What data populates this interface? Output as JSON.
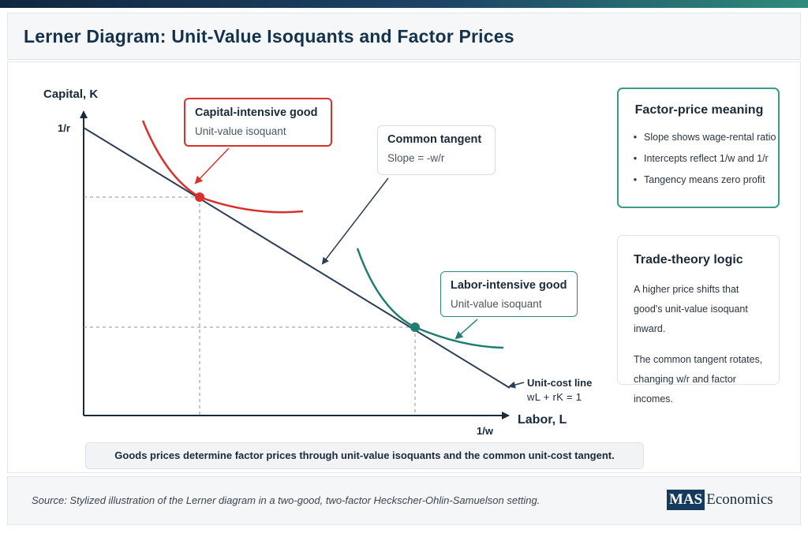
{
  "title": "Lerner Diagram: Unit-Value Isoquants and Factor Prices",
  "colors": {
    "capital": "#d9302c",
    "labor": "#1f7d72",
    "line": "#2c3e55",
    "panel_accent": "#3c9a87",
    "brand": "#163a5c"
  },
  "diagram": {
    "y_axis_label": "Capital, K",
    "x_axis_label": "Labor, L",
    "y_intercept_label": "1/r",
    "x_intercept_label": "1/w",
    "capital_callout": {
      "title": "Capital-intensive good",
      "subtitle": "Unit-value isoquant"
    },
    "tangent_callout": {
      "title": "Common tangent",
      "subtitle": "Slope = -w/r"
    },
    "labor_callout": {
      "title": "Labor-intensive good",
      "subtitle": "Unit-value isoquant"
    },
    "unit_cost": {
      "title": "Unit-cost line",
      "equation": "wL + rK = 1"
    }
  },
  "factor_panel": {
    "title": "Factor-price meaning",
    "bullets": [
      "Slope shows wage-rental ratio",
      "Intercepts reflect 1/w and 1/r",
      "Tangency means zero profit"
    ]
  },
  "trade_panel": {
    "title": "Trade-theory logic",
    "text1": "A higher price shifts that good's unit-value isoquant inward.",
    "text2": "The common tangent rotates, changing w/r and factor incomes."
  },
  "bottom_note": "Goods prices determine factor prices through unit-value isoquants and the common unit-cost tangent.",
  "source": "Source: Stylized illustration of the Lerner diagram in a two-good, two-factor Heckscher-Ohlin-Samuelson setting.",
  "logo": {
    "box": "MAS",
    "text": "Economics"
  }
}
